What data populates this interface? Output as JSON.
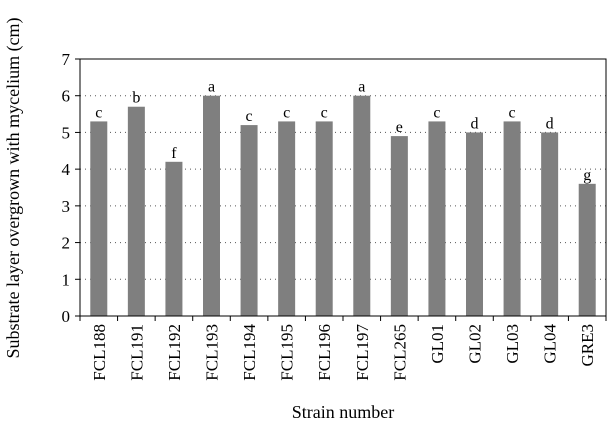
{
  "chart_data": {
    "type": "bar",
    "title": "",
    "xlabel": "Strain number",
    "ylabel": "Substrate layer overgrown with mycelium (cm)",
    "ylim": [
      0,
      7
    ],
    "yticks": [
      "0",
      "1",
      "2",
      "3",
      "4",
      "5",
      "6",
      "7"
    ],
    "grid": true,
    "legend": "none",
    "categories": [
      "FCL188",
      "FCL191",
      "FCL192",
      "FCL193",
      "FCL194",
      "FCL195",
      "FCL196",
      "FCL197",
      "FCL265",
      "GL01",
      "GL02",
      "GL03",
      "GL04",
      "GRE3"
    ],
    "values": [
      5.3,
      5.7,
      4.2,
      6.0,
      5.2,
      5.3,
      5.3,
      6.0,
      4.9,
      5.3,
      5.0,
      5.3,
      5.0,
      3.6
    ],
    "labels": [
      "c",
      "b",
      "f",
      "a",
      "c",
      "c",
      "c",
      "a",
      "e",
      "c",
      "d",
      "c",
      "d",
      "g"
    ],
    "colors": {
      "bar": "#7f7f7f",
      "axis": "#000000",
      "grid": "#555555"
    }
  }
}
